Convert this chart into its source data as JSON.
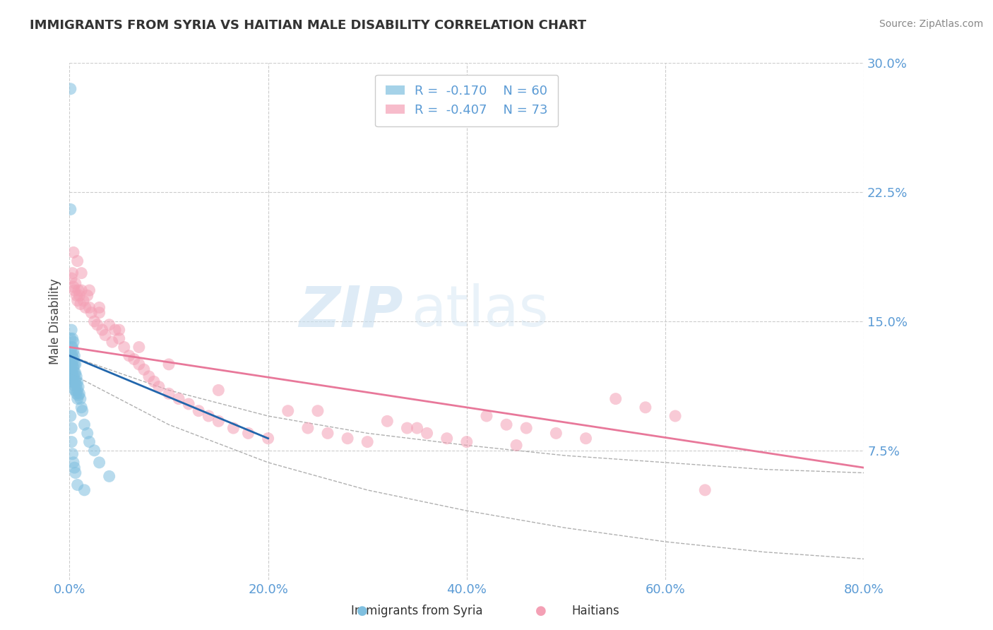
{
  "title": "IMMIGRANTS FROM SYRIA VS HAITIAN MALE DISABILITY CORRELATION CHART",
  "source": "Source: ZipAtlas.com",
  "ylabel": "Male Disability",
  "xlim": [
    0.0,
    0.8
  ],
  "ylim": [
    0.0,
    0.3
  ],
  "yticks": [
    0.075,
    0.15,
    0.225,
    0.3
  ],
  "ytick_labels": [
    "7.5%",
    "15.0%",
    "22.5%",
    "30.0%"
  ],
  "xticks": [
    0.0,
    0.2,
    0.4,
    0.6,
    0.8
  ],
  "xtick_labels": [
    "0.0%",
    "20.0%",
    "40.0%",
    "60.0%",
    "80.0%"
  ],
  "series1_label": "Immigrants from Syria",
  "series1_color": "#7fbfdf",
  "series1_R": "-0.170",
  "series1_N": "60",
  "series2_label": "Haitians",
  "series2_color": "#f4a0b5",
  "series2_R": "-0.407",
  "series2_N": "73",
  "watermark_zip": "ZIP",
  "watermark_atlas": "atlas",
  "background_color": "#ffffff",
  "grid_color": "#cccccc",
  "axis_color": "#5b9bd5",
  "title_fontsize": 13,
  "blue_scatter_x": [
    0.001,
    0.001,
    0.001,
    0.001,
    0.001,
    0.002,
    0.002,
    0.002,
    0.002,
    0.002,
    0.002,
    0.003,
    0.003,
    0.003,
    0.003,
    0.003,
    0.003,
    0.004,
    0.004,
    0.004,
    0.004,
    0.004,
    0.004,
    0.005,
    0.005,
    0.005,
    0.005,
    0.005,
    0.006,
    0.006,
    0.006,
    0.006,
    0.007,
    0.007,
    0.007,
    0.008,
    0.008,
    0.008,
    0.009,
    0.009,
    0.01,
    0.011,
    0.012,
    0.013,
    0.015,
    0.018,
    0.02,
    0.025,
    0.03,
    0.04,
    0.001,
    0.001,
    0.002,
    0.002,
    0.003,
    0.004,
    0.005,
    0.006,
    0.008,
    0.015
  ],
  "blue_scatter_y": [
    0.285,
    0.14,
    0.13,
    0.125,
    0.12,
    0.145,
    0.135,
    0.13,
    0.125,
    0.12,
    0.115,
    0.14,
    0.135,
    0.13,
    0.125,
    0.12,
    0.115,
    0.138,
    0.133,
    0.128,
    0.123,
    0.118,
    0.113,
    0.13,
    0.125,
    0.12,
    0.115,
    0.11,
    0.125,
    0.12,
    0.115,
    0.11,
    0.118,
    0.113,
    0.108,
    0.115,
    0.11,
    0.105,
    0.112,
    0.107,
    0.108,
    0.105,
    0.1,
    0.098,
    0.09,
    0.085,
    0.08,
    0.075,
    0.068,
    0.06,
    0.215,
    0.095,
    0.088,
    0.08,
    0.073,
    0.068,
    0.065,
    0.062,
    0.055,
    0.052
  ],
  "pink_scatter_x": [
    0.002,
    0.003,
    0.004,
    0.005,
    0.006,
    0.007,
    0.008,
    0.009,
    0.01,
    0.011,
    0.012,
    0.014,
    0.016,
    0.018,
    0.02,
    0.022,
    0.025,
    0.028,
    0.03,
    0.033,
    0.036,
    0.04,
    0.043,
    0.046,
    0.05,
    0.055,
    0.06,
    0.065,
    0.07,
    0.075,
    0.08,
    0.085,
    0.09,
    0.1,
    0.11,
    0.12,
    0.13,
    0.14,
    0.15,
    0.165,
    0.18,
    0.2,
    0.22,
    0.24,
    0.26,
    0.28,
    0.3,
    0.32,
    0.34,
    0.36,
    0.38,
    0.4,
    0.42,
    0.44,
    0.46,
    0.49,
    0.52,
    0.55,
    0.58,
    0.61,
    0.004,
    0.008,
    0.012,
    0.02,
    0.03,
    0.05,
    0.07,
    0.1,
    0.15,
    0.25,
    0.35,
    0.45,
    0.64
  ],
  "pink_scatter_y": [
    0.175,
    0.178,
    0.17,
    0.168,
    0.172,
    0.165,
    0.162,
    0.168,
    0.165,
    0.16,
    0.168,
    0.162,
    0.158,
    0.165,
    0.158,
    0.155,
    0.15,
    0.148,
    0.155,
    0.145,
    0.142,
    0.148,
    0.138,
    0.145,
    0.14,
    0.135,
    0.13,
    0.128,
    0.125,
    0.122,
    0.118,
    0.115,
    0.112,
    0.108,
    0.105,
    0.102,
    0.098,
    0.095,
    0.092,
    0.088,
    0.085,
    0.082,
    0.098,
    0.088,
    0.085,
    0.082,
    0.08,
    0.092,
    0.088,
    0.085,
    0.082,
    0.08,
    0.095,
    0.09,
    0.088,
    0.085,
    0.082,
    0.105,
    0.1,
    0.095,
    0.19,
    0.185,
    0.178,
    0.168,
    0.158,
    0.145,
    0.135,
    0.125,
    0.11,
    0.098,
    0.088,
    0.078,
    0.052
  ],
  "blue_line_x": [
    0.0,
    0.2
  ],
  "blue_line_y": [
    0.13,
    0.082
  ],
  "pink_line_x": [
    0.0,
    0.8
  ],
  "pink_line_y": [
    0.135,
    0.065
  ],
  "conf_band_x": [
    0.0,
    0.1,
    0.2,
    0.3,
    0.4,
    0.5,
    0.6,
    0.7,
    0.8
  ],
  "conf_upper": [
    0.13,
    0.11,
    0.095,
    0.085,
    0.078,
    0.072,
    0.068,
    0.064,
    0.062
  ],
  "conf_lower": [
    0.12,
    0.09,
    0.068,
    0.052,
    0.04,
    0.03,
    0.022,
    0.016,
    0.012
  ]
}
